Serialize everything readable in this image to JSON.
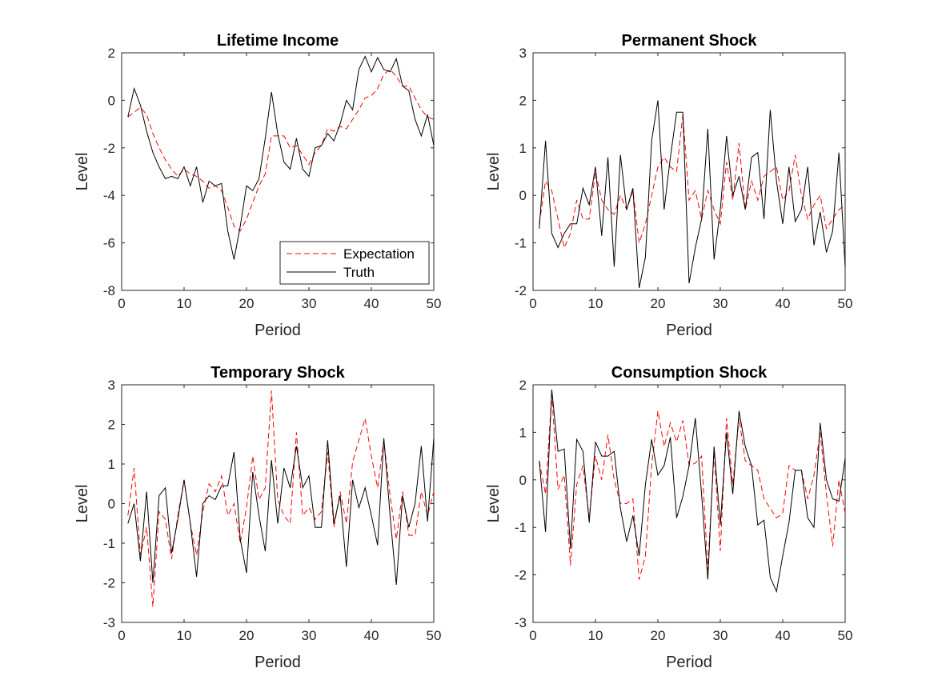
{
  "colors": {
    "expectation": "#ff0000",
    "truth": "#000000",
    "axis": "#262626"
  },
  "chart_data": [
    {
      "type": "line",
      "title": "Lifetime Income",
      "xlabel": "Period",
      "ylabel": "Level",
      "xlim": [
        0,
        50
      ],
      "ylim": [
        -8,
        2
      ],
      "xticks": [
        0,
        10,
        20,
        30,
        40,
        50
      ],
      "yticks": [
        -8,
        -6,
        -4,
        -2,
        0,
        2
      ],
      "legend": "bottom-right",
      "x": [
        1,
        2,
        3,
        4,
        5,
        6,
        7,
        8,
        9,
        10,
        11,
        12,
        13,
        14,
        15,
        16,
        17,
        18,
        19,
        20,
        21,
        22,
        23,
        24,
        25,
        26,
        27,
        28,
        29,
        30,
        31,
        32,
        33,
        34,
        35,
        36,
        37,
        38,
        39,
        40,
        41,
        42,
        43,
        44,
        45,
        46,
        47,
        48,
        49,
        50
      ],
      "series": [
        {
          "name": "Expectation",
          "style": "dashed",
          "color": "#ff0000",
          "values": [
            -0.7,
            -0.5,
            -0.3,
            -0.6,
            -1.4,
            -2.0,
            -2.5,
            -2.9,
            -3.2,
            -2.9,
            -3.1,
            -3.2,
            -3.4,
            -3.7,
            -3.6,
            -3.8,
            -4.5,
            -5.3,
            -5.5,
            -5.0,
            -4.3,
            -3.6,
            -3.1,
            -1.5,
            -1.5,
            -1.5,
            -2.0,
            -1.9,
            -2.3,
            -2.7,
            -2.2,
            -1.9,
            -1.2,
            -1.3,
            -1.1,
            -1.2,
            -0.8,
            -0.4,
            0.1,
            0.2,
            0.5,
            1.1,
            1.3,
            1.0,
            0.6,
            0.6,
            0.1,
            -0.4,
            -0.7,
            -0.8
          ]
        },
        {
          "name": "Truth",
          "style": "solid",
          "color": "#000000",
          "values": [
            -0.7,
            0.5,
            -0.2,
            -1.3,
            -2.2,
            -2.8,
            -3.3,
            -3.2,
            -3.3,
            -2.8,
            -3.6,
            -2.8,
            -4.3,
            -3.4,
            -3.6,
            -3.5,
            -5.5,
            -6.7,
            -5.3,
            -3.6,
            -3.8,
            -3.3,
            -1.6,
            0.35,
            -1.4,
            -2.6,
            -2.9,
            -1.6,
            -2.9,
            -3.2,
            -2.0,
            -1.9,
            -1.4,
            -1.7,
            -1.0,
            0.0,
            -0.4,
            1.3,
            1.85,
            1.2,
            1.8,
            1.3,
            1.2,
            1.75,
            0.6,
            0.4,
            -0.8,
            -1.5,
            -0.6,
            -1.9
          ]
        }
      ]
    },
    {
      "type": "line",
      "title": "Permanent Shock",
      "xlabel": "Period",
      "ylabel": "Level",
      "xlim": [
        0,
        50
      ],
      "ylim": [
        -2,
        3
      ],
      "xticks": [
        0,
        10,
        20,
        30,
        40,
        50
      ],
      "yticks": [
        -2,
        -1,
        0,
        1,
        2,
        3
      ],
      "x": [
        1,
        2,
        3,
        4,
        5,
        6,
        7,
        8,
        9,
        10,
        11,
        12,
        13,
        14,
        15,
        16,
        17,
        18,
        19,
        20,
        21,
        22,
        23,
        24,
        25,
        26,
        27,
        28,
        29,
        30,
        31,
        32,
        33,
        34,
        35,
        36,
        37,
        38,
        39,
        40,
        41,
        42,
        43,
        44,
        45,
        46,
        47,
        48,
        49,
        50
      ],
      "series": [
        {
          "name": "Expectation",
          "style": "dashed",
          "color": "#ff0000",
          "values": [
            -0.6,
            0.3,
            0.1,
            -0.5,
            -1.1,
            -0.8,
            -0.1,
            -0.5,
            -0.5,
            0.5,
            -0.1,
            -0.3,
            -0.4,
            0.0,
            -0.3,
            0.1,
            -1.0,
            -0.6,
            0.0,
            0.6,
            0.8,
            0.6,
            0.5,
            1.7,
            -0.1,
            0.1,
            -0.5,
            0.1,
            -0.3,
            -0.6,
            0.7,
            -0.1,
            1.1,
            -0.3,
            0.3,
            -0.1,
            0.4,
            0.5,
            0.6,
            -0.1,
            0.1,
            0.85,
            0.0,
            -0.5,
            -0.2,
            0.0,
            -0.7,
            -0.5,
            -0.3,
            -0.2
          ]
        },
        {
          "name": "Truth",
          "style": "solid",
          "color": "#000000",
          "values": [
            -0.7,
            1.15,
            -0.8,
            -1.1,
            -0.8,
            -0.6,
            -0.6,
            0.15,
            -0.2,
            0.6,
            -0.85,
            0.8,
            -1.5,
            0.85,
            -0.3,
            0.15,
            -1.95,
            -1.3,
            1.15,
            2.0,
            -0.3,
            0.8,
            1.75,
            1.75,
            -1.85,
            -1.1,
            -0.5,
            1.4,
            -1.35,
            -0.3,
            1.25,
            0.0,
            0.4,
            -0.3,
            0.8,
            0.9,
            -0.5,
            1.8,
            0.3,
            -0.6,
            0.6,
            -0.55,
            -0.3,
            0.6,
            -1.05,
            -0.35,
            -1.2,
            -0.75,
            0.9,
            -1.5
          ]
        }
      ]
    },
    {
      "type": "line",
      "title": "Temporary Shock",
      "xlabel": "Period",
      "ylabel": "Level",
      "xlim": [
        0,
        50
      ],
      "ylim": [
        -3,
        3
      ],
      "xticks": [
        0,
        10,
        20,
        30,
        40,
        50
      ],
      "yticks": [
        -3,
        -2,
        -1,
        0,
        1,
        2,
        3
      ],
      "x": [
        1,
        2,
        3,
        4,
        5,
        6,
        7,
        8,
        9,
        10,
        11,
        12,
        13,
        14,
        15,
        16,
        17,
        18,
        19,
        20,
        21,
        22,
        23,
        24,
        25,
        26,
        27,
        28,
        29,
        30,
        31,
        32,
        33,
        34,
        35,
        36,
        37,
        38,
        39,
        40,
        41,
        42,
        43,
        44,
        45,
        46,
        47,
        48,
        49,
        50
      ],
      "series": [
        {
          "name": "Expectation",
          "style": "dashed",
          "color": "#ff0000",
          "values": [
            -0.3,
            0.9,
            -1.3,
            -0.6,
            -2.6,
            -0.2,
            -0.4,
            -1.4,
            -0.3,
            0.6,
            -0.5,
            -1.3,
            -0.2,
            0.5,
            0.3,
            0.7,
            -0.3,
            0.0,
            -1.0,
            -0.1,
            1.2,
            0.1,
            0.4,
            2.85,
            0.1,
            -0.3,
            -0.5,
            1.8,
            -0.3,
            -0.1,
            -0.4,
            -0.2,
            1.3,
            -0.6,
            0.3,
            -0.5,
            1.05,
            1.6,
            2.15,
            1.2,
            0.4,
            1.6,
            0.2,
            -0.9,
            0.3,
            -0.8,
            -0.8,
            0.3,
            -0.3,
            0.3
          ]
        },
        {
          "name": "Truth",
          "style": "solid",
          "color": "#000000",
          "values": [
            -0.5,
            0.0,
            -1.45,
            0.3,
            -2.0,
            0.2,
            0.4,
            -1.25,
            -0.4,
            0.6,
            -0.5,
            -1.85,
            0.0,
            0.2,
            0.1,
            0.45,
            0.45,
            1.3,
            -0.9,
            -1.75,
            0.8,
            -0.3,
            -1.2,
            1.1,
            -0.5,
            0.9,
            0.4,
            1.45,
            0.4,
            0.7,
            -0.6,
            -0.6,
            1.6,
            -0.5,
            0.2,
            -1.6,
            0.6,
            -0.1,
            0.4,
            -0.3,
            -1.05,
            1.65,
            -0.3,
            -2.05,
            0.2,
            -0.6,
            0.0,
            1.45,
            -0.45,
            1.65
          ]
        }
      ]
    },
    {
      "type": "line",
      "title": "Consumption Shock",
      "xlabel": "Period",
      "ylabel": "Level",
      "xlim": [
        0,
        50
      ],
      "ylim": [
        -3,
        2
      ],
      "xticks": [
        0,
        10,
        20,
        30,
        40,
        50
      ],
      "yticks": [
        -3,
        -2,
        -1,
        0,
        1,
        2
      ],
      "x": [
        1,
        2,
        3,
        4,
        5,
        6,
        7,
        8,
        9,
        10,
        11,
        12,
        13,
        14,
        15,
        16,
        17,
        18,
        19,
        20,
        21,
        22,
        23,
        24,
        25,
        26,
        27,
        28,
        29,
        30,
        31,
        32,
        33,
        34,
        35,
        36,
        37,
        38,
        39,
        40,
        41,
        42,
        43,
        44,
        45,
        46,
        47,
        48,
        49,
        50
      ],
      "series": [
        {
          "name": "Expectation",
          "style": "dashed",
          "color": "#ff0000",
          "values": [
            0.4,
            -0.3,
            1.8,
            -0.2,
            0.1,
            -1.8,
            -0.1,
            0.3,
            -0.8,
            0.5,
            0.0,
            0.95,
            0.0,
            -0.5,
            -0.5,
            -0.4,
            -2.1,
            -1.6,
            0.3,
            1.45,
            0.7,
            1.2,
            0.8,
            1.25,
            0.3,
            0.35,
            0.5,
            -1.9,
            0.6,
            -1.5,
            1.3,
            -0.1,
            1.3,
            0.4,
            0.3,
            0.2,
            -0.4,
            -0.6,
            -0.8,
            -0.7,
            0.3,
            0.2,
            0.2,
            -0.4,
            0.1,
            1.0,
            -0.3,
            -1.4,
            0.0,
            -0.7
          ]
        },
        {
          "name": "Truth",
          "style": "solid",
          "color": "#000000",
          "values": [
            0.4,
            -1.1,
            1.9,
            0.6,
            0.65,
            -1.45,
            0.85,
            0.6,
            -0.9,
            0.8,
            0.5,
            0.5,
            0.6,
            -0.6,
            -1.3,
            -0.75,
            -1.6,
            -0.1,
            0.85,
            0.1,
            0.3,
            0.9,
            -0.8,
            -0.35,
            0.3,
            1.3,
            -0.3,
            -2.1,
            0.7,
            -0.95,
            1.0,
            -0.3,
            1.45,
            0.7,
            0.3,
            -0.95,
            -0.85,
            -2.05,
            -2.35,
            -1.6,
            -0.9,
            0.2,
            0.2,
            -0.8,
            -1.0,
            1.2,
            0.0,
            -0.4,
            -0.45,
            0.45
          ]
        }
      ]
    }
  ],
  "legend": {
    "entries": [
      "Expectation",
      "Truth"
    ]
  }
}
